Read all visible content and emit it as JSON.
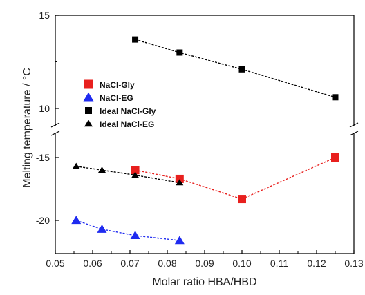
{
  "chart_data": {
    "type": "scatter",
    "xlabel": "Molar ratio HBA/HBD",
    "ylabel": "Melting temperature / °C",
    "xlim": [
      0.05,
      0.13
    ],
    "x_ticks": [
      "0.05",
      "0.06",
      "0.07",
      "0.08",
      "0.09",
      "0.10",
      "0.11",
      "0.12",
      "0.13"
    ],
    "axis_break": true,
    "y_upper_ticks": [
      "10",
      "15"
    ],
    "y_lower_ticks": [
      "-20",
      "-15"
    ],
    "legend_position": "left-middle",
    "series": [
      {
        "name": "NaCl-Gly",
        "color": "#e8201e",
        "marker": "square",
        "panel": "lower",
        "x": [
          0.0714,
          0.0833,
          0.1,
          0.125
        ],
        "y": [
          -16.0,
          -16.7,
          -18.3,
          -15.0
        ]
      },
      {
        "name": "NaCl-EG",
        "color": "#1f2bf0",
        "marker": "triangle",
        "panel": "lower",
        "x": [
          0.0556,
          0.0625,
          0.0714,
          0.0833
        ],
        "y": [
          -20.0,
          -20.7,
          -21.2,
          -21.6
        ]
      },
      {
        "name": "Ideal NaCl-Gly",
        "color": "#000000",
        "marker": "square",
        "panel": "upper",
        "x": [
          0.0714,
          0.0833,
          0.1,
          0.125
        ],
        "y": [
          13.7,
          13.0,
          12.1,
          10.6
        ]
      },
      {
        "name": "Ideal NaCl-EG",
        "color": "#000000",
        "marker": "triangle",
        "panel": "lower",
        "x": [
          0.0556,
          0.0625,
          0.0714,
          0.0833
        ],
        "y": [
          -15.7,
          -16.0,
          -16.4,
          -17.0
        ]
      }
    ]
  }
}
